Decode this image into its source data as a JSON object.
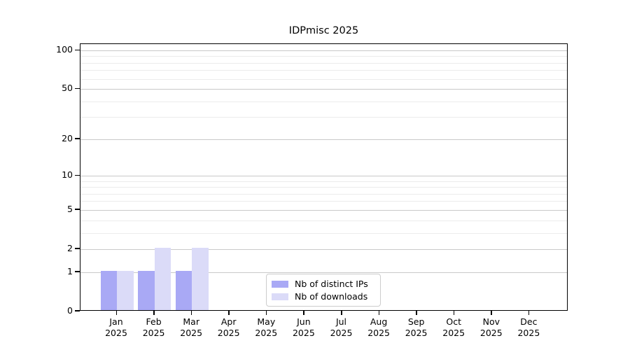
{
  "chart_data": {
    "type": "bar",
    "title": "IDPmisc 2025",
    "categories": [
      "Jan 2025",
      "Feb 2025",
      "Mar 2025",
      "Apr 2025",
      "May 2025",
      "Jun 2025",
      "Jul 2025",
      "Aug 2025",
      "Sep 2025",
      "Oct 2025",
      "Nov 2025",
      "Dec 2025"
    ],
    "series": [
      {
        "name": "Nb of distinct IPs",
        "color": "#a9a9f5",
        "values": [
          1,
          1,
          1,
          0,
          0,
          0,
          0,
          0,
          0,
          0,
          0,
          0
        ]
      },
      {
        "name": "Nb of downloads",
        "color": "#dbdbf8",
        "values": [
          1,
          2,
          2,
          0,
          0,
          0,
          0,
          0,
          0,
          0,
          0,
          0
        ]
      }
    ],
    "xlabel": "",
    "ylabel": "",
    "y_scale": "log1p",
    "y_ticks": [
      0,
      1,
      2,
      5,
      10,
      20,
      50,
      100
    ],
    "y_minor_ticks": [
      3,
      4,
      6,
      7,
      8,
      9,
      30,
      40,
      60,
      70,
      80,
      90
    ],
    "ylim": [
      0,
      112
    ],
    "grid": "on",
    "legend_position": "lower center"
  },
  "colors": {
    "grid_major": "#c9c9c9",
    "grid_minor": "#ececec",
    "axis": "#000000",
    "background": "#ffffff"
  }
}
